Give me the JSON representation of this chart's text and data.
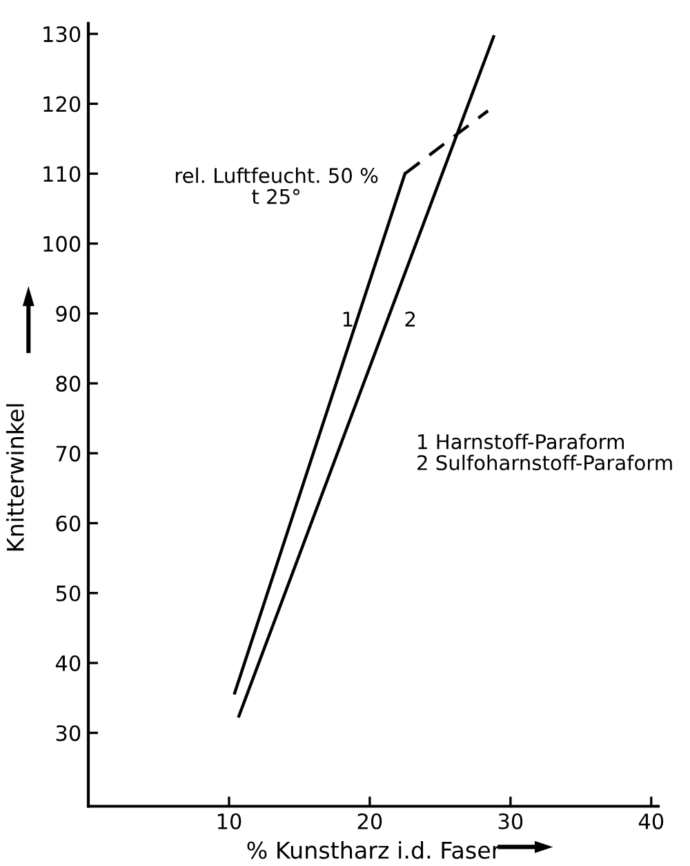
{
  "chart_data": {
    "type": "line",
    "xlabel": "% Kunstharz i.d. Faser",
    "ylabel": "Knitterwinkel",
    "xlim": [
      0,
      40.5
    ],
    "ylim": [
      19.5,
      131.5
    ],
    "xticks": [
      10,
      20,
      30,
      40
    ],
    "yticks": [
      30,
      40,
      50,
      60,
      70,
      80,
      90,
      100,
      110,
      120,
      130
    ],
    "grid": false,
    "legend": false,
    "marker": "none",
    "series": [
      {
        "x": [
          10.4,
          22.5
        ],
        "values": [
          35.7,
          110
        ],
        "color": "#000000",
        "line_style": "solid"
      },
      {
        "x": [
          22.5,
          28.4
        ],
        "values": [
          110,
          119
        ],
        "color": "#000000",
        "line_style": "dashed"
      },
      {
        "x": [
          10.7,
          28.8
        ],
        "values": [
          32.4,
          129.6
        ],
        "color": "#000000",
        "line_style": "solid"
      }
    ],
    "annotations": [
      "1",
      "2",
      "rel. Luftfeucht. 50 %\nt 25°",
      "1 Harnstoff-Paraform\n2 Sulfoharnstoff-Paraform"
    ]
  }
}
